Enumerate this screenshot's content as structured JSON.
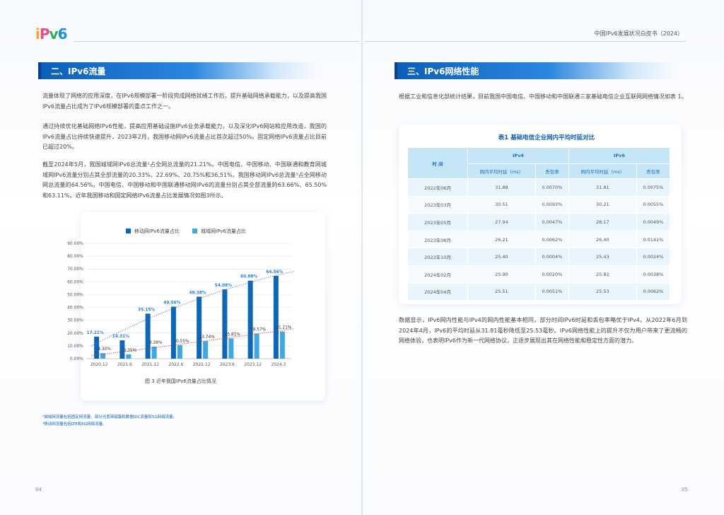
{
  "header": {
    "logo_parts": [
      "i",
      "P",
      "v",
      "6"
    ],
    "book_title": "中国IPv6发展状况白皮书（2024）"
  },
  "left": {
    "section_title": "二、IPv6流量",
    "paragraphs": [
      "流量体现了网络的应用深度，在IPv6规模部署一阶段完成网络就绪工作后，提升基础网络承载能力，以及提高我国IPv6流量占比成为了IPv6规模部署的重点工作之一。",
      "通过持续优化基础网络IPv6性能，提高应用基础设施IPv6业务承载能力，以及深化IPv6网站和应用改造，我国的IPv6流量占比持续快速提升，2023年2月，我国移动网IPv6流量占比首次超过50%。固定网络IPv6流量占比目前已超过20%。",
      "截至2024年5月，我国城域网IPv6总流量²占全网总流量的21.21%。中国电信、中国移动、中国联通和教育网城域网IPv6流量分别占其全部流量的20.33%、22.69%、20.75%和36.51%。我国移动网IPv6总流量³占全网移动网总流量的64.56%。中国电信、中国移动和中国联通移动网IPv6的流量分别占其全部流量的63.66%、65.50%和63.11%。近年我国移动和固定网络IPv6流量占比发展情况如图3所示。"
    ],
    "figure_caption": "图 3 近年我国IPv6流量占比情况",
    "footnotes": [
      "²城域网流量包括固定网流量、部分光宽带链路和数据IDC流量和5G网络流量。",
      "³移动网流量包括LTE和5G网络流量。"
    ],
    "page_number": "04"
  },
  "chart_data": {
    "type": "bar",
    "categories": [
      "2020.12",
      "2021.6",
      "2021.12",
      "2022.6",
      "2022.12",
      "2023.6",
      "2023.12",
      "2024.3"
    ],
    "series": [
      {
        "name": "移动网IPv6流量占比",
        "color": "#0d66b8",
        "values": [
          17.21,
          14.31,
          35.15,
          40.56,
          48.38,
          54.08,
          60.88,
          64.56
        ],
        "labels": [
          "17.21%",
          "14.31%",
          "35.15%",
          "40.56%",
          "48.38%",
          "54.08%",
          "60.88%",
          "64.56%"
        ]
      },
      {
        "name": "城域网IPv6流量占比",
        "color": "#3fa7e3",
        "values": [
          4.3,
          3.35,
          9.38,
          10.55,
          13.74,
          15.81,
          19.57,
          21.21
        ],
        "labels": [
          "4.30%",
          "3.35%",
          "9.38%",
          "10.55%",
          "13.74%",
          "15.81%",
          "19.57%",
          "21.21%"
        ]
      }
    ],
    "ylim": [
      0,
      90
    ],
    "yticks": [
      "0.00%",
      "10.00%",
      "20.00%",
      "30.00%",
      "40.00%",
      "50.00%",
      "60.00%",
      "70.00%",
      "80.00%",
      "90.00%"
    ],
    "grid": true,
    "legend": "top-center",
    "trendlines": "dotted"
  },
  "right": {
    "section_title": "三、IPv6网络性能",
    "intro": "根据工业和信息化部统计结果，目前我国中国电信、中国移动和中国联通三家基础电信企业互联网网络情况如表 1。",
    "table_title": "表1 基础电信企业网内平均时延对比",
    "table": {
      "col_time": "时 间",
      "group_v4": "IPv4",
      "group_v6": "IPv6",
      "sub_headers": [
        "网内平均时延（ms）",
        "丢包率",
        "网内平均时延（ms）",
        "丢包率"
      ],
      "rows": [
        [
          "2022年06月",
          "31.88",
          "0.0070%",
          "31.81",
          "0.0075%"
        ],
        [
          "2023年03月",
          "30.51",
          "0.0093%",
          "30.21",
          "0.0055%"
        ],
        [
          "2023年05月",
          "27.94",
          "0.0047%",
          "28.17",
          "0.0049%"
        ],
        [
          "2023年08月",
          "26.21",
          "0.0062%",
          "26.40",
          "0.0141%"
        ],
        [
          "2023年10月",
          "25.40",
          "0.0004%",
          "25.43",
          "0.0024%"
        ],
        [
          "2024年02月",
          "25.90",
          "0.0020%",
          "25.82",
          "0.0038%"
        ],
        [
          "2024年04月",
          "25.51",
          "0.0051%",
          "25.53",
          "0.0062%"
        ]
      ]
    },
    "conclusion": "数据显示，IPv6网内性能与IPv4的网内性能基本相同，部分时间IPv6时延和丢包率略优于IPv4。从2022年6月到2024年4月，IPv6的平均时延从31.81毫秒降低至25.53毫秒。IPv6网络性能上的提升不仅为用户带来了更流畅的网络体验，也表明IPv6作为新一代网络协议，正逐步展现出其在网络性能和稳定性方面的潜力。",
    "page_number": "05"
  }
}
